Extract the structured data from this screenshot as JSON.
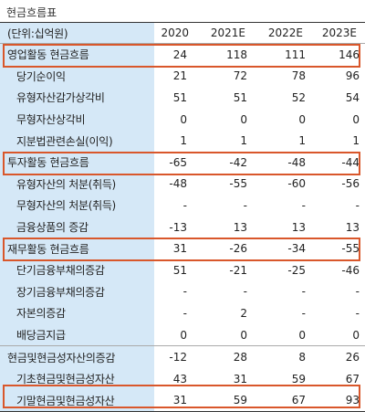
{
  "title": "현금흐름표",
  "header": {
    "unit": "(단위:십억원)",
    "years": [
      "2020",
      "2021E",
      "2022E",
      "2023E"
    ]
  },
  "rows": [
    {
      "label": "영업활동 현금흐름",
      "values": [
        "24",
        "118",
        "111",
        "146"
      ]
    },
    {
      "label": "당기순이익",
      "values": [
        "21",
        "72",
        "78",
        "96"
      ]
    },
    {
      "label": "유형자산감가상각비",
      "values": [
        "51",
        "51",
        "52",
        "54"
      ]
    },
    {
      "label": "무형자산상각비",
      "values": [
        "0",
        "0",
        "0",
        "0"
      ]
    },
    {
      "label": "지분법관련손실(이익)",
      "values": [
        "1",
        "1",
        "1",
        "1"
      ]
    },
    {
      "label": "투자활동 현금흐름",
      "values": [
        "-65",
        "-42",
        "-48",
        "-44"
      ]
    },
    {
      "label": "유형자산의 처분(취득)",
      "values": [
        "-48",
        "-55",
        "-60",
        "-56"
      ]
    },
    {
      "label": "무형자산의 처분(취득)",
      "values": [
        "-",
        "-",
        "-",
        "-"
      ]
    },
    {
      "label": "금융상품의 증감",
      "values": [
        "-13",
        "13",
        "13",
        "13"
      ]
    },
    {
      "label": "재무활동 현금흐름",
      "values": [
        "31",
        "-26",
        "-34",
        "-55"
      ]
    },
    {
      "label": "단기금융부채의증감",
      "values": [
        "51",
        "-21",
        "-25",
        "-46"
      ]
    },
    {
      "label": "장기금융부채의증감",
      "values": [
        "-",
        "-",
        "-",
        "-"
      ]
    },
    {
      "label": "자본의증감",
      "values": [
        "-",
        "2",
        "-",
        "-"
      ]
    },
    {
      "label": "배당금지급",
      "values": [
        "0",
        "0",
        "0",
        "0"
      ]
    },
    {
      "label": "현금및현금성자산의증감",
      "values": [
        "-12",
        "28",
        "8",
        "26"
      ]
    },
    {
      "label": "기초현금및현금성자산",
      "values": [
        "43",
        "31",
        "59",
        "67"
      ]
    },
    {
      "label": "기말현금및현금성자산",
      "values": [
        "31",
        "59",
        "67",
        "93"
      ]
    }
  ],
  "colors": {
    "label_background": "#d5e8f7",
    "highlight_border": "#d9572b"
  }
}
